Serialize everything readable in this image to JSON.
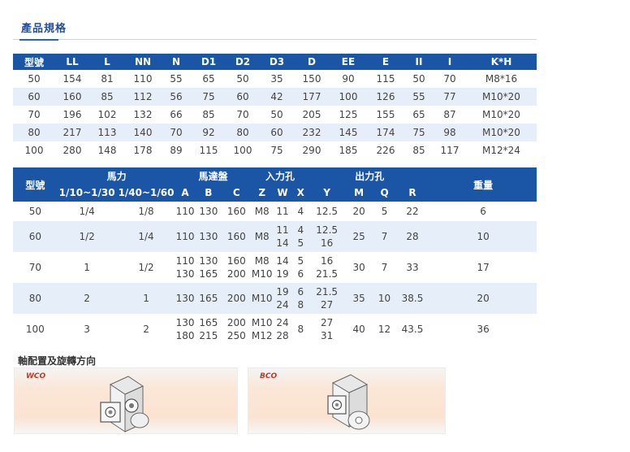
{
  "section_title": "產品規格",
  "table1": {
    "headers": [
      "型號",
      "LL",
      "L",
      "NN",
      "N",
      "D1",
      "D2",
      "D3",
      "D",
      "EE",
      "E",
      "II",
      "I",
      "K*H"
    ],
    "rows": [
      [
        "50",
        "154",
        "81",
        "110",
        "55",
        "65",
        "50",
        "35",
        "150",
        "90",
        "115",
        "50",
        "70",
        "M8*16"
      ],
      [
        "60",
        "160",
        "85",
        "112",
        "56",
        "75",
        "60",
        "42",
        "177",
        "100",
        "126",
        "55",
        "77",
        "M10*20"
      ],
      [
        "70",
        "196",
        "102",
        "132",
        "66",
        "85",
        "70",
        "50",
        "205",
        "125",
        "155",
        "65",
        "87",
        "M10*20"
      ],
      [
        "80",
        "217",
        "113",
        "140",
        "70",
        "92",
        "80",
        "60",
        "232",
        "145",
        "174",
        "75",
        "98",
        "M10*20"
      ],
      [
        "100",
        "280",
        "148",
        "178",
        "89",
        "115",
        "100",
        "75",
        "290",
        "185",
        "226",
        "85",
        "117",
        "M12*24"
      ]
    ]
  },
  "table2": {
    "header_top": {
      "model": "型號",
      "horsepower": "馬力",
      "motor_disk": "馬達盤",
      "input_hole": "入力孔",
      "output_hole": "出力孔",
      "weight": "重量"
    },
    "header_sub": [
      "1/10~1/30",
      "1/40~1/60",
      "A",
      "B",
      "C",
      "Z",
      "W",
      "X",
      "Y",
      "M",
      "Q",
      "R"
    ],
    "rows": [
      {
        "model": "50",
        "hp1": "1/4",
        "hp2": "1/8",
        "a": [
          "110"
        ],
        "b": [
          "130"
        ],
        "c": [
          "160"
        ],
        "z": [
          "M8"
        ],
        "w": [
          "11"
        ],
        "x": [
          "4"
        ],
        "y": [
          "12.5"
        ],
        "m": "20",
        "q": "5",
        "r": "22",
        "weight": "6"
      },
      {
        "model": "60",
        "hp1": "1/2",
        "hp2": "1/4",
        "a": [
          "110"
        ],
        "b": [
          "130"
        ],
        "c": [
          "160"
        ],
        "z": [
          "M8"
        ],
        "w": [
          "11",
          "14"
        ],
        "x": [
          "4",
          "5"
        ],
        "y": [
          "12.5",
          "16"
        ],
        "m": "25",
        "q": "7",
        "r": "28",
        "weight": "10"
      },
      {
        "model": "70",
        "hp1": "1",
        "hp2": "1/2",
        "a": [
          "110",
          "130"
        ],
        "b": [
          "130",
          "165"
        ],
        "c": [
          "160",
          "200"
        ],
        "z": [
          "M8",
          "M10"
        ],
        "w": [
          "14",
          "19"
        ],
        "x": [
          "5",
          "6"
        ],
        "y": [
          "16",
          "21.5"
        ],
        "m": "30",
        "q": "7",
        "r": "33",
        "weight": "17"
      },
      {
        "model": "80",
        "hp1": "2",
        "hp2": "1",
        "a": [
          "130"
        ],
        "b": [
          "165"
        ],
        "c": [
          "200"
        ],
        "z": [
          "M10"
        ],
        "w": [
          "19",
          "24"
        ],
        "x": [
          "6",
          "8"
        ],
        "y": [
          "21.5",
          "27"
        ],
        "m": "35",
        "q": "10",
        "r": "38.5",
        "weight": "20"
      },
      {
        "model": "100",
        "hp1": "3",
        "hp2": "2",
        "a": [
          "130",
          "180"
        ],
        "b": [
          "165",
          "215"
        ],
        "c": [
          "200",
          "250"
        ],
        "z": [
          "M10",
          "M12"
        ],
        "w": [
          "24",
          "28"
        ],
        "x": [
          "8"
        ],
        "y": [
          "27",
          "31"
        ],
        "m": "40",
        "q": "12",
        "r": "43.5",
        "weight": "36"
      }
    ]
  },
  "shaft_section_title": "軸配置及旋轉方向",
  "panels": [
    {
      "label": "WCO",
      "icon": "gearbox-wco-icon"
    },
    {
      "label": "BCO",
      "icon": "gearbox-bco-icon"
    }
  ],
  "colors": {
    "header_bg": "#1a55a6",
    "alt_row_bg": "#e6eff9",
    "title_color": "#1f4f9f",
    "panel_label_color": "#c0392b"
  }
}
